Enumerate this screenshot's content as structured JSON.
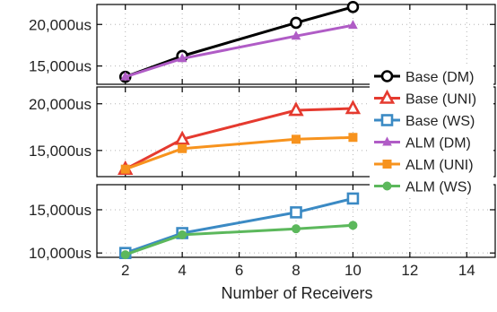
{
  "chart_data": {
    "type": "line",
    "xlabel": "Number of Receivers",
    "x_ticks": [
      "2",
      "4",
      "6",
      "8",
      "10",
      "12",
      "14"
    ],
    "xlim": [
      1,
      15
    ],
    "grid": true,
    "legend_position": "right",
    "legend": [
      {
        "label": "Base (DM)",
        "series": "base_dm"
      },
      {
        "label": "Base (UNI)",
        "series": "base_uni"
      },
      {
        "label": "Base (WS)",
        "series": "base_ws"
      },
      {
        "label": "ALM (DM)",
        "series": "alm_dm"
      },
      {
        "label": "ALM (UNI)",
        "series": "alm_uni"
      },
      {
        "label": "ALM (WS)",
        "series": "alm_ws"
      }
    ],
    "panels": [
      {
        "id": "top",
        "ylim": [
          12800,
          22400
        ],
        "y_ticks": [
          {
            "value": 15000,
            "label": "15,000us"
          },
          {
            "value": 20000,
            "label": "20,000us"
          }
        ],
        "series": [
          {
            "id": "base_dm",
            "name": "Base (DM)",
            "color": "#000000",
            "marker": "open-circle",
            "x": [
              2,
              4,
              8,
              10
            ],
            "y": [
              13700,
              16200,
              20200,
              22100
            ]
          },
          {
            "id": "alm_dm",
            "name": "ALM (DM)",
            "color": "#b05cc6",
            "marker": "triangle",
            "x": [
              2,
              4,
              8,
              10
            ],
            "y": [
              13700,
              15900,
              18600,
              19900
            ]
          }
        ]
      },
      {
        "id": "middle",
        "ylim": [
          12200,
          21800
        ],
        "y_ticks": [
          {
            "value": 15000,
            "label": "15,000us"
          },
          {
            "value": 20000,
            "label": "20,000us"
          }
        ],
        "series": [
          {
            "id": "base_uni",
            "name": "Base (UNI)",
            "color": "#e53a2f",
            "marker": "open-triangle",
            "x": [
              2,
              4,
              8,
              10
            ],
            "y": [
              13000,
              16200,
              19300,
              19500
            ]
          },
          {
            "id": "alm_uni",
            "name": "ALM (UNI)",
            "color": "#f7931e",
            "marker": "square",
            "x": [
              2,
              4,
              8,
              10
            ],
            "y": [
              13000,
              15200,
              16200,
              16400
            ]
          }
        ]
      },
      {
        "id": "bottom",
        "ylim": [
          9500,
          17900
        ],
        "y_ticks": [
          {
            "value": 10000,
            "label": "10,000us"
          },
          {
            "value": 15000,
            "label": "15,000us"
          }
        ],
        "series": [
          {
            "id": "base_ws",
            "name": "Base (WS)",
            "color": "#3b8ac4",
            "marker": "open-square",
            "x": [
              2,
              4,
              8,
              10
            ],
            "y": [
              10000,
              12300,
              14700,
              16300
            ]
          },
          {
            "id": "alm_ws",
            "name": "ALM (WS)",
            "color": "#5cb85c",
            "marker": "circle",
            "x": [
              2,
              4,
              8,
              10
            ],
            "y": [
              9800,
              12100,
              12800,
              13200
            ]
          }
        ]
      }
    ]
  }
}
